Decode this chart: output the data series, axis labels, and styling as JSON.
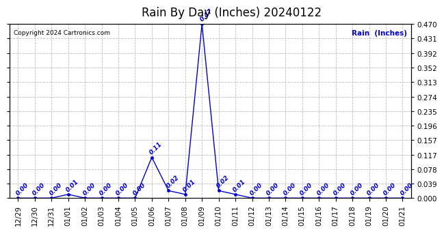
{
  "title": "Rain By Day (Inches) 20240122",
  "copyright": "Copyright 2024 Cartronics.com",
  "legend_label": "Rain  (Inches)",
  "dates": [
    "12/29",
    "12/30",
    "12/31",
    "01/01",
    "01/02",
    "01/03",
    "01/04",
    "01/05",
    "01/06",
    "01/07",
    "01/08",
    "01/09",
    "01/10",
    "01/11",
    "01/12",
    "01/13",
    "01/14",
    "01/15",
    "01/16",
    "01/17",
    "01/18",
    "01/19",
    "01/20",
    "01/21"
  ],
  "values": [
    0.0,
    0.0,
    0.0,
    0.01,
    0.0,
    0.0,
    0.0,
    0.0,
    0.11,
    0.02,
    0.01,
    0.47,
    0.02,
    0.01,
    0.0,
    0.0,
    0.0,
    0.0,
    0.0,
    0.0,
    0.0,
    0.0,
    0.0,
    0.0
  ],
  "line_color": "#0000cc",
  "marker_color": "#0000cc",
  "label_color": "#0000cc",
  "title_color": "black",
  "background_color": "white",
  "grid_color": "#bbbbbb",
  "ylim": [
    0.0,
    0.47
  ],
  "yticks": [
    0.0,
    0.039,
    0.078,
    0.117,
    0.157,
    0.196,
    0.235,
    0.274,
    0.313,
    0.352,
    0.392,
    0.431,
    0.47
  ],
  "title_fontsize": 12,
  "label_fontsize": 6.5,
  "axis_fontsize": 7.5,
  "copyright_fontsize": 6.5
}
